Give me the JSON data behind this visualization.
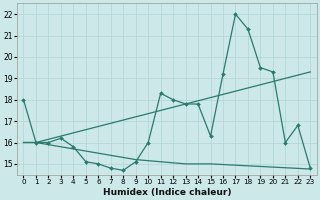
{
  "xlabel": "Humidex (Indice chaleur)",
  "bg_color": "#cce8e8",
  "grid_color": "#b0d4d4",
  "line_color": "#2a7a6e",
  "y_data": [
    18.0,
    16.0,
    16.0,
    16.2,
    15.8,
    15.1,
    15.0,
    14.8,
    14.7,
    15.1,
    16.0,
    18.3,
    18.0,
    17.8,
    17.8,
    16.3,
    19.2,
    22.0,
    21.3,
    19.5,
    19.3,
    16.0,
    16.8,
    14.8
  ],
  "y_upper": [
    16.0,
    16.0,
    16.15,
    16.3,
    16.45,
    16.6,
    16.75,
    16.9,
    17.05,
    17.2,
    17.35,
    17.5,
    17.65,
    17.8,
    17.95,
    18.1,
    18.25,
    18.4,
    18.55,
    18.7,
    18.85,
    19.0,
    19.15,
    19.3
  ],
  "y_lower": [
    16.0,
    16.0,
    15.9,
    15.8,
    15.7,
    15.6,
    15.5,
    15.4,
    15.3,
    15.2,
    15.15,
    15.1,
    15.05,
    15.0,
    15.0,
    15.0,
    14.97,
    14.94,
    14.91,
    14.88,
    14.85,
    14.82,
    14.79,
    14.76
  ],
  "ylim": [
    14.5,
    22.5
  ],
  "yticks": [
    15,
    16,
    17,
    18,
    19,
    20,
    21,
    22
  ],
  "xlim": [
    -0.5,
    23.5
  ],
  "xticks": [
    0,
    1,
    2,
    3,
    4,
    5,
    6,
    7,
    8,
    9,
    10,
    11,
    12,
    13,
    14,
    15,
    16,
    17,
    18,
    19,
    20,
    21,
    22,
    23
  ]
}
